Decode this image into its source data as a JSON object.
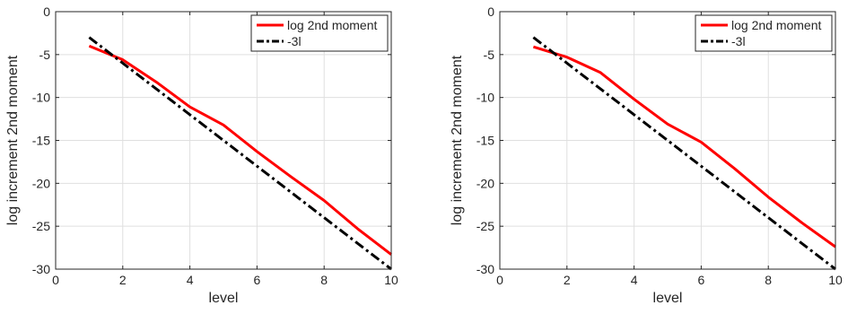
{
  "chart_data": [
    {
      "type": "line",
      "title": "",
      "xlabel": "level",
      "ylabel": "log increment 2nd moment",
      "xlim": [
        0,
        10
      ],
      "ylim": [
        -30,
        0
      ],
      "xticks": [
        0,
        2,
        4,
        6,
        8,
        10
      ],
      "yticks": [
        0,
        -5,
        -10,
        -15,
        -20,
        -25,
        -30
      ],
      "grid": true,
      "legend_position": "top-right",
      "series": [
        {
          "name": "log 2nd moment",
          "color": "#ff0000",
          "style": "solid",
          "x": [
            1,
            2,
            3,
            4,
            5,
            6,
            7,
            8,
            9,
            10
          ],
          "y": [
            -4.0,
            -5.6,
            -8.2,
            -11.1,
            -13.2,
            -16.3,
            -19.2,
            -22.0,
            -25.3,
            -28.3
          ]
        },
        {
          "name": "-3l",
          "color": "#000000",
          "style": "dashdot",
          "x": [
            1,
            10
          ],
          "y": [
            -3,
            -30
          ]
        }
      ]
    },
    {
      "type": "line",
      "title": "",
      "xlabel": "level",
      "ylabel": "log increment 2nd moment",
      "xlim": [
        0,
        10
      ],
      "ylim": [
        -30,
        0
      ],
      "xticks": [
        0,
        2,
        4,
        6,
        8,
        10
      ],
      "yticks": [
        0,
        -5,
        -10,
        -15,
        -20,
        -25,
        -30
      ],
      "grid": true,
      "legend_position": "top-right",
      "series": [
        {
          "name": "log 2nd moment",
          "color": "#ff0000",
          "style": "solid",
          "x": [
            1,
            2,
            3,
            4,
            5,
            6,
            7,
            8,
            9,
            10
          ],
          "y": [
            -4.1,
            -5.3,
            -7.1,
            -10.2,
            -13.1,
            -15.2,
            -18.3,
            -21.6,
            -24.6,
            -27.4
          ]
        },
        {
          "name": "-3l",
          "color": "#000000",
          "style": "dashdot",
          "x": [
            1,
            10
          ],
          "y": [
            -3,
            -30
          ]
        }
      ]
    }
  ]
}
